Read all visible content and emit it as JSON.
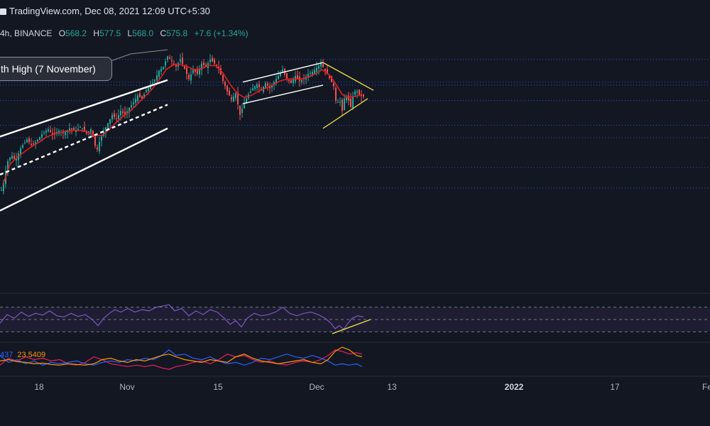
{
  "header": {
    "source": "TradingView.com, Dec 08, 2021 12:09 UTC+5:30"
  },
  "symbol_line": {
    "prefix": "4h, BINANCE",
    "open_label": "O",
    "open_value": "568.2",
    "high_label": "H",
    "high_value": "577.5",
    "low_label": "L",
    "low_value": "568.0",
    "close_label": "C",
    "close_value": "575.8",
    "change": "+7.6 (+1.34%)"
  },
  "annotation": {
    "text": "th High (7 November)"
  },
  "indicator_labels": {
    "first": "437",
    "second": "23.5409"
  },
  "colors": {
    "background": "#131722",
    "up": "#26a69a",
    "down": "#ef5350",
    "ma": "#e01e1e",
    "channel": "#ffffff",
    "triangle": "#e5d64b",
    "rsi": "#7e57c2",
    "dmi_plus": "#2962ff",
    "dmi_minus": "#e91e63",
    "adx": "#ff9800",
    "level": "#2962ff"
  },
  "chart_data": {
    "type": "candlestick",
    "timeframe": "4h",
    "x_tick_labels": [
      {
        "label": "18",
        "bold": false
      },
      {
        "label": "Nov",
        "bold": false
      },
      {
        "label": "15",
        "bold": false
      },
      {
        "label": "Dec",
        "bold": false
      },
      {
        "label": "13",
        "bold": false
      },
      {
        "label": "2022",
        "bold": true
      },
      {
        "label": "17",
        "bold": false
      },
      {
        "label": "Fe",
        "bold": false
      }
    ],
    "price_ylim": [
      480,
      665
    ],
    "price_path": [
      [
        0,
        518
      ],
      [
        6,
        533
      ],
      [
        10,
        550
      ],
      [
        16,
        557
      ],
      [
        22,
        552
      ],
      [
        30,
        565
      ],
      [
        38,
        572
      ],
      [
        45,
        566
      ],
      [
        52,
        571
      ],
      [
        60,
        578
      ],
      [
        68,
        582
      ],
      [
        75,
        576
      ],
      [
        82,
        581
      ],
      [
        90,
        578
      ],
      [
        98,
        583
      ],
      [
        106,
        580
      ],
      [
        114,
        585
      ],
      [
        122,
        578
      ],
      [
        128,
        582
      ],
      [
        132,
        572
      ],
      [
        136,
        560
      ],
      [
        140,
        570
      ],
      [
        146,
        580
      ],
      [
        152,
        588
      ],
      [
        158,
        596
      ],
      [
        164,
        592
      ],
      [
        170,
        600
      ],
      [
        176,
        596
      ],
      [
        182,
        603
      ],
      [
        188,
        608
      ],
      [
        194,
        615
      ],
      [
        200,
        612
      ],
      [
        206,
        620
      ],
      [
        212,
        625
      ],
      [
        218,
        630
      ],
      [
        224,
        639
      ],
      [
        230,
        643
      ],
      [
        236,
        653
      ],
      [
        242,
        648
      ],
      [
        248,
        643
      ],
      [
        254,
        650
      ],
      [
        260,
        641
      ],
      [
        266,
        631
      ],
      [
        272,
        640
      ],
      [
        278,
        636
      ],
      [
        284,
        646
      ],
      [
        290,
        643
      ],
      [
        296,
        650
      ],
      [
        302,
        646
      ],
      [
        308,
        641
      ],
      [
        314,
        629
      ],
      [
        320,
        619
      ],
      [
        326,
        611
      ],
      [
        332,
        617
      ],
      [
        338,
        596
      ],
      [
        344,
        608
      ],
      [
        350,
        616
      ],
      [
        356,
        622
      ],
      [
        362,
        626
      ],
      [
        368,
        620
      ],
      [
        374,
        627
      ],
      [
        380,
        622
      ],
      [
        386,
        628
      ],
      [
        392,
        634
      ],
      [
        398,
        640
      ],
      [
        404,
        631
      ],
      [
        410,
        627
      ],
      [
        416,
        634
      ],
      [
        422,
        629
      ],
      [
        428,
        631
      ],
      [
        434,
        636
      ],
      [
        440,
        638
      ],
      [
        446,
        642
      ],
      [
        452,
        646
      ],
      [
        458,
        639
      ],
      [
        464,
        632
      ],
      [
        470,
        624
      ],
      [
        474,
        605
      ],
      [
        478,
        612
      ],
      [
        482,
        600
      ],
      [
        486,
        616
      ],
      [
        490,
        612
      ],
      [
        494,
        604
      ],
      [
        498,
        618
      ],
      [
        502,
        620
      ],
      [
        506,
        616
      ],
      [
        510,
        614
      ]
    ],
    "moving_average_path": [
      [
        4,
        528
      ],
      [
        14,
        548
      ],
      [
        24,
        555
      ],
      [
        34,
        560
      ],
      [
        44,
        565
      ],
      [
        54,
        569
      ],
      [
        64,
        574
      ],
      [
        74,
        577
      ],
      [
        84,
        579
      ],
      [
        94,
        580
      ],
      [
        104,
        581
      ],
      [
        114,
        581
      ],
      [
        124,
        579
      ],
      [
        134,
        576
      ],
      [
        144,
        576
      ],
      [
        154,
        582
      ],
      [
        164,
        589
      ],
      [
        174,
        595
      ],
      [
        184,
        600
      ],
      [
        194,
        607
      ],
      [
        204,
        614
      ],
      [
        214,
        621
      ],
      [
        224,
        630
      ],
      [
        234,
        640
      ],
      [
        244,
        645
      ],
      [
        254,
        645
      ],
      [
        264,
        643
      ],
      [
        274,
        640
      ],
      [
        284,
        641
      ],
      [
        294,
        644
      ],
      [
        304,
        644
      ],
      [
        314,
        637
      ],
      [
        324,
        626
      ],
      [
        334,
        617
      ],
      [
        344,
        613
      ],
      [
        354,
        615
      ],
      [
        364,
        619
      ],
      [
        374,
        622
      ],
      [
        384,
        625
      ],
      [
        394,
        629
      ],
      [
        404,
        631
      ],
      [
        414,
        631
      ],
      [
        424,
        631
      ],
      [
        434,
        633
      ],
      [
        444,
        636
      ],
      [
        454,
        640
      ],
      [
        464,
        635
      ],
      [
        474,
        625
      ],
      [
        482,
        616
      ],
      [
        490,
        613
      ],
      [
        500,
        614
      ],
      [
        510,
        616
      ]
    ],
    "horizontal_levels": [
      650,
      628,
      625,
      610,
      586,
      574,
      545,
      525
    ],
    "rising_channel": [
      {
        "from": [
          0,
          575
        ],
        "to": [
          236,
          630
        ],
        "style": "solid"
      },
      {
        "from": [
          0,
          538
        ],
        "to": [
          236,
          606
        ],
        "style": "dashed"
      },
      {
        "from": [
          0,
          503
        ],
        "to": [
          236,
          583
        ],
        "style": "solid"
      }
    ],
    "flag_channel": [
      {
        "from": [
          342,
          628
        ],
        "to": [
          455,
          647
        ],
        "style": "solid"
      },
      {
        "from": [
          342,
          607
        ],
        "to": [
          455,
          625
        ],
        "style": "solid"
      }
    ],
    "triangle": [
      {
        "from": [
          455,
          647
        ],
        "to": [
          526,
          620
        ],
        "style": "solid"
      },
      {
        "from": [
          455,
          583
        ],
        "to": [
          518,
          612
        ],
        "style": "solid"
      }
    ],
    "rsi": {
      "ylim": [
        20,
        80
      ],
      "levels": [
        70,
        50,
        30
      ],
      "path": [
        [
          0,
          44
        ],
        [
          10,
          58
        ],
        [
          20,
          52
        ],
        [
          30,
          62
        ],
        [
          40,
          55
        ],
        [
          50,
          60
        ],
        [
          60,
          57
        ],
        [
          70,
          64
        ],
        [
          80,
          56
        ],
        [
          90,
          54
        ],
        [
          100,
          60
        ],
        [
          110,
          55
        ],
        [
          120,
          58
        ],
        [
          130,
          50
        ],
        [
          138,
          40
        ],
        [
          146,
          52
        ],
        [
          154,
          60
        ],
        [
          162,
          66
        ],
        [
          170,
          62
        ],
        [
          180,
          68
        ],
        [
          190,
          62
        ],
        [
          200,
          66
        ],
        [
          210,
          64
        ],
        [
          220,
          70
        ],
        [
          230,
          72
        ],
        [
          238,
          74
        ],
        [
          246,
          64
        ],
        [
          256,
          68
        ],
        [
          266,
          56
        ],
        [
          276,
          64
        ],
        [
          286,
          58
        ],
        [
          296,
          66
        ],
        [
          306,
          62
        ],
        [
          316,
          52
        ],
        [
          324,
          42
        ],
        [
          332,
          48
        ],
        [
          340,
          38
        ],
        [
          348,
          52
        ],
        [
          358,
          60
        ],
        [
          368,
          56
        ],
        [
          378,
          58
        ],
        [
          388,
          62
        ],
        [
          398,
          70
        ],
        [
          408,
          60
        ],
        [
          418,
          56
        ],
        [
          428,
          60
        ],
        [
          438,
          62
        ],
        [
          448,
          58
        ],
        [
          458,
          52
        ],
        [
          466,
          44
        ],
        [
          472,
          35
        ],
        [
          478,
          40
        ],
        [
          484,
          34
        ],
        [
          490,
          44
        ],
        [
          496,
          52
        ],
        [
          504,
          56
        ],
        [
          512,
          54
        ]
      ],
      "divergence_line": {
        "from": [
          468,
          27
        ],
        "to": [
          522,
          50
        ]
      }
    },
    "dmi": {
      "ylim": [
        0,
        45
      ],
      "plus_path": [
        [
          0,
          28
        ],
        [
          12,
          18
        ],
        [
          24,
          22
        ],
        [
          36,
          16
        ],
        [
          48,
          20
        ],
        [
          60,
          14
        ],
        [
          72,
          18
        ],
        [
          84,
          16
        ],
        [
          96,
          18
        ],
        [
          108,
          20
        ],
        [
          120,
          16
        ],
        [
          132,
          14
        ],
        [
          144,
          18
        ],
        [
          156,
          20
        ],
        [
          168,
          18
        ],
        [
          180,
          22
        ],
        [
          192,
          20
        ],
        [
          204,
          24
        ],
        [
          216,
          22
        ],
        [
          228,
          28
        ],
        [
          238,
          36
        ],
        [
          248,
          28
        ],
        [
          260,
          30
        ],
        [
          272,
          24
        ],
        [
          284,
          22
        ],
        [
          296,
          26
        ],
        [
          308,
          20
        ],
        [
          320,
          16
        ],
        [
          332,
          18
        ],
        [
          344,
          14
        ],
        [
          356,
          18
        ],
        [
          368,
          24
        ],
        [
          380,
          22
        ],
        [
          392,
          26
        ],
        [
          404,
          30
        ],
        [
          416,
          26
        ],
        [
          428,
          24
        ],
        [
          440,
          28
        ],
        [
          452,
          24
        ],
        [
          462,
          20
        ],
        [
          472,
          14
        ],
        [
          482,
          16
        ],
        [
          492,
          14
        ],
        [
          502,
          16
        ],
        [
          510,
          12
        ]
      ],
      "minus_path": [
        [
          0,
          14
        ],
        [
          12,
          24
        ],
        [
          24,
          20
        ],
        [
          36,
          26
        ],
        [
          48,
          22
        ],
        [
          60,
          24
        ],
        [
          72,
          20
        ],
        [
          84,
          22
        ],
        [
          96,
          16
        ],
        [
          108,
          14
        ],
        [
          120,
          18
        ],
        [
          132,
          26
        ],
        [
          144,
          22
        ],
        [
          156,
          16
        ],
        [
          168,
          14
        ],
        [
          180,
          12
        ],
        [
          192,
          14
        ],
        [
          204,
          12
        ],
        [
          216,
          14
        ],
        [
          228,
          10
        ],
        [
          238,
          8
        ],
        [
          248,
          12
        ],
        [
          260,
          14
        ],
        [
          272,
          18
        ],
        [
          284,
          20
        ],
        [
          296,
          16
        ],
        [
          308,
          22
        ],
        [
          320,
          30
        ],
        [
          332,
          26
        ],
        [
          344,
          28
        ],
        [
          356,
          22
        ],
        [
          368,
          18
        ],
        [
          380,
          20
        ],
        [
          392,
          16
        ],
        [
          404,
          14
        ],
        [
          416,
          18
        ],
        [
          428,
          20
        ],
        [
          440,
          18
        ],
        [
          452,
          22
        ],
        [
          462,
          28
        ],
        [
          472,
          36
        ],
        [
          482,
          34
        ],
        [
          492,
          30
        ],
        [
          502,
          32
        ],
        [
          510,
          30
        ]
      ],
      "adx_path": [
        [
          0,
          20
        ],
        [
          12,
          22
        ],
        [
          24,
          19
        ],
        [
          36,
          18
        ],
        [
          48,
          16
        ],
        [
          60,
          17
        ],
        [
          72,
          15
        ],
        [
          84,
          14
        ],
        [
          96,
          16
        ],
        [
          108,
          15
        ],
        [
          120,
          14
        ],
        [
          132,
          16
        ],
        [
          144,
          22
        ],
        [
          156,
          24
        ],
        [
          168,
          20
        ],
        [
          180,
          18
        ],
        [
          192,
          22
        ],
        [
          204,
          20
        ],
        [
          216,
          24
        ],
        [
          228,
          28
        ],
        [
          238,
          30
        ],
        [
          248,
          26
        ],
        [
          260,
          22
        ],
        [
          272,
          20
        ],
        [
          284,
          18
        ],
        [
          296,
          22
        ],
        [
          308,
          20
        ],
        [
          320,
          18
        ],
        [
          332,
          26
        ],
        [
          344,
          30
        ],
        [
          356,
          24
        ],
        [
          368,
          20
        ],
        [
          380,
          18
        ],
        [
          392,
          16
        ],
        [
          404,
          18
        ],
        [
          416,
          20
        ],
        [
          428,
          22
        ],
        [
          440,
          18
        ],
        [
          452,
          16
        ],
        [
          462,
          22
        ],
        [
          472,
          34
        ],
        [
          482,
          40
        ],
        [
          492,
          36
        ],
        [
          502,
          28
        ],
        [
          510,
          26
        ]
      ]
    }
  }
}
